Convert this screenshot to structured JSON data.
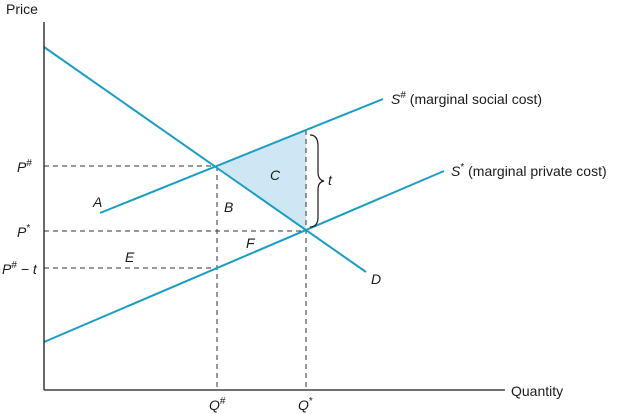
{
  "title": "",
  "axes": {
    "y_label": "Price",
    "x_label": "Quantity"
  },
  "y_ticks": {
    "p_hash": {
      "base": "P",
      "sup": "#"
    },
    "p_star": {
      "base": "P",
      "sup": "*"
    },
    "p_hash_minus_t": {
      "base": "P",
      "sup": "#",
      "tail": " − t"
    }
  },
  "x_ticks": {
    "q_hash": {
      "base": "Q",
      "sup": "#"
    },
    "q_star": {
      "base": "Q",
      "sup": "*"
    }
  },
  "curves": {
    "s_hash": {
      "base": "S",
      "sup": "#",
      "desc": " (marginal social cost)"
    },
    "s_star": {
      "base": "S",
      "sup": "*",
      "desc": " (marginal private cost)"
    },
    "demand": "D"
  },
  "regions": {
    "a": "A",
    "b": "B",
    "c": "C",
    "e": "E",
    "f": "F",
    "tax": "t"
  },
  "colors": {
    "curve": "#1b9dc3",
    "shade": "#cfe7f5",
    "axis": "#1a1a1a",
    "guide": "#333333"
  }
}
